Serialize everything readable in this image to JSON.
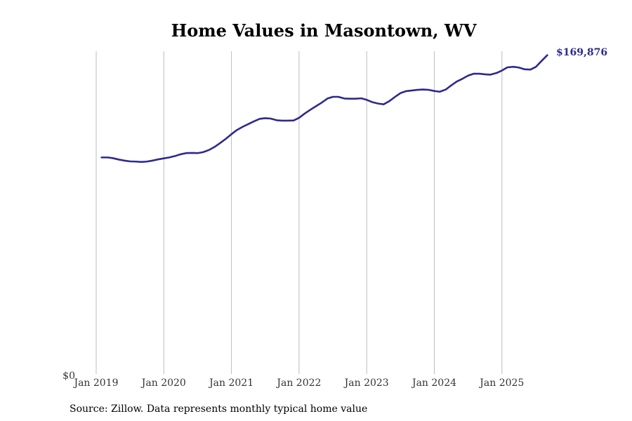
{
  "chart_data": {
    "type": "line",
    "title": "Home Values in Masontown, WV",
    "source": "Source: Zillow. Data represents monthly typical home value",
    "y_min_label": "$0",
    "end_value_label": "$169,876",
    "xlabel": "",
    "ylabel": "",
    "grid": "vertical",
    "x_range": [
      2019.0,
      2025.75
    ],
    "ylim": [
      0,
      172000
    ],
    "x_ticks": [
      {
        "value": 2019,
        "label": "Jan 2019"
      },
      {
        "value": 2020,
        "label": "Jan 2020"
      },
      {
        "value": 2021,
        "label": "Jan 2021"
      },
      {
        "value": 2022,
        "label": "Jan 2022"
      },
      {
        "value": 2023,
        "label": "Jan 2023"
      },
      {
        "value": 2024,
        "label": "Jan 2024"
      },
      {
        "value": 2025,
        "label": "Jan 2025"
      }
    ],
    "series": [
      {
        "name": "Typical home value",
        "color": "#2e2a8c",
        "x": [
          2019.08,
          2019.17,
          2019.25,
          2019.33,
          2019.42,
          2019.5,
          2019.58,
          2019.67,
          2019.75,
          2019.83,
          2019.92,
          2020.0,
          2020.08,
          2020.17,
          2020.25,
          2020.33,
          2020.42,
          2020.5,
          2020.58,
          2020.67,
          2020.75,
          2020.83,
          2020.92,
          2021.0,
          2021.08,
          2021.17,
          2021.25,
          2021.33,
          2021.42,
          2021.5,
          2021.58,
          2021.67,
          2021.75,
          2021.83,
          2021.92,
          2022.0,
          2022.08,
          2022.17,
          2022.25,
          2022.33,
          2022.42,
          2022.5,
          2022.58,
          2022.67,
          2022.75,
          2022.83,
          2022.92,
          2023.0,
          2023.08,
          2023.17,
          2023.25,
          2023.33,
          2023.42,
          2023.5,
          2023.58,
          2023.67,
          2023.75,
          2023.83,
          2023.92,
          2024.0,
          2024.08,
          2024.17,
          2024.25,
          2024.33,
          2024.42,
          2024.5,
          2024.58,
          2024.67,
          2024.75,
          2024.83,
          2024.92,
          2025.0,
          2025.08,
          2025.17,
          2025.25,
          2025.33,
          2025.42,
          2025.5,
          2025.58,
          2025.67
        ],
        "values": [
          115400,
          115400,
          115000,
          114300,
          113700,
          113300,
          113200,
          113000,
          113200,
          113700,
          114400,
          114900,
          115400,
          116200,
          117100,
          117700,
          117800,
          117700,
          118200,
          119400,
          121000,
          123000,
          125400,
          127800,
          130000,
          131800,
          133200,
          134600,
          136000,
          136300,
          136100,
          135200,
          135000,
          135000,
          135100,
          136500,
          138700,
          140900,
          142700,
          144500,
          146800,
          147700,
          147700,
          146800,
          146700,
          146700,
          146900,
          146100,
          144900,
          144100,
          143700,
          145300,
          147700,
          149700,
          150700,
          151100,
          151400,
          151600,
          151400,
          150800,
          150400,
          151600,
          153800,
          155800,
          157400,
          159000,
          160000,
          160000,
          159700,
          159500,
          160400,
          161700,
          163400,
          163700,
          163300,
          162400,
          162200,
          163600,
          166600,
          169876
        ]
      }
    ]
  }
}
